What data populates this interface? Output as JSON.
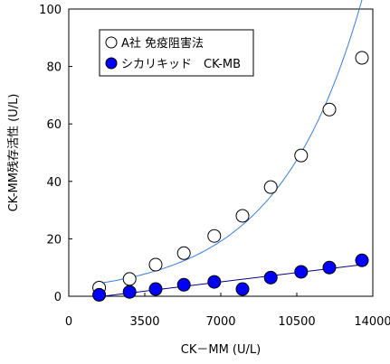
{
  "chart_data": {
    "type": "scatter",
    "xlabel": "CK－MM (U/L)",
    "ylabel": "CK-MM残存活性 (U/L)",
    "xlim": [
      0,
      14000
    ],
    "ylim": [
      0,
      100
    ],
    "xticks": [
      0,
      3500,
      7000,
      10500,
      14000
    ],
    "yticks": [
      0,
      20,
      40,
      60,
      80,
      100
    ],
    "grid": false,
    "legend_position": "top-left",
    "series": [
      {
        "name": "A社 免疫阻害法",
        "marker": "open-circle",
        "color": "#000000",
        "trendline_color": "#3b7dd8",
        "trendline_type": "exponential",
        "x": [
          1400,
          2800,
          4000,
          5300,
          6700,
          8000,
          9300,
          10700,
          12000,
          13500
        ],
        "y": [
          3,
          6,
          11,
          15,
          21,
          28,
          38,
          49,
          65,
          83
        ]
      },
      {
        "name": "シカリキッド　CK-MB",
        "marker": "filled-circle",
        "color": "#0000ff",
        "trendline_color": "#000080",
        "trendline_type": "linear",
        "x": [
          1400,
          2800,
          4000,
          5300,
          6700,
          8000,
          9300,
          10700,
          12000,
          13500
        ],
        "y": [
          0.5,
          1.5,
          2.5,
          4,
          5,
          2.5,
          6.5,
          8.5,
          10,
          12.5
        ]
      }
    ]
  }
}
